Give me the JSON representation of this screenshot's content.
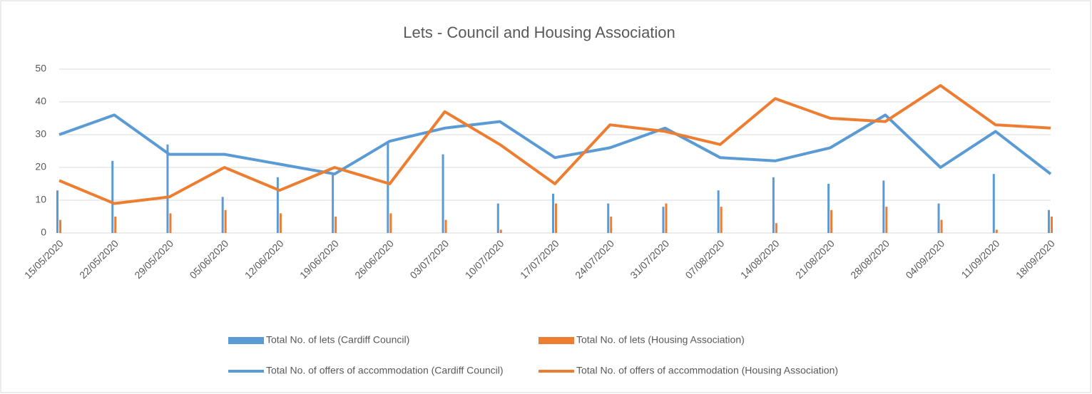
{
  "chart_data": {
    "type": "combo",
    "title": "Lets - Council and Housing Association",
    "categories": [
      "15/05/2020",
      "22/05/2020",
      "29/05/2020",
      "05/06/2020",
      "12/06/2020",
      "19/06/2020",
      "26/06/2020",
      "03/07/2020",
      "10/07/2020",
      "17/07/2020",
      "24/07/2020",
      "31/07/2020",
      "07/08/2020",
      "14/08/2020",
      "21/08/2020",
      "28/08/2020",
      "04/09/2020",
      "11/09/2020",
      "18/09/2020"
    ],
    "series": [
      {
        "name": "Total No. of lets (Cardiff Council)",
        "type": "bar",
        "color": "#5b9bd5",
        "values": [
          13,
          22,
          27,
          11,
          17,
          18,
          28,
          24,
          9,
          12,
          9,
          8,
          13,
          17,
          15,
          16,
          9,
          18,
          7
        ]
      },
      {
        "name": "Total No. of lets (Housing Association)",
        "type": "bar",
        "color": "#ed7d31",
        "values": [
          4,
          5,
          6,
          7,
          6,
          5,
          6,
          4,
          1,
          9,
          5,
          9,
          8,
          3,
          7,
          8,
          4,
          1,
          5
        ]
      },
      {
        "name": "Total No. of offers of accommodation (Cardiff Council)",
        "type": "line",
        "color": "#5b9bd5",
        "values": [
          30,
          36,
          24,
          24,
          21,
          18,
          28,
          32,
          34,
          23,
          26,
          32,
          23,
          22,
          26,
          36,
          20,
          31,
          18
        ]
      },
      {
        "name": "Total No. of offers of accommodation (Housing Association)",
        "type": "line",
        "color": "#ed7d31",
        "values": [
          16,
          9,
          11,
          20,
          13,
          20,
          15,
          37,
          27,
          15,
          33,
          31,
          27,
          41,
          35,
          34,
          45,
          33,
          32
        ]
      }
    ],
    "ylim": [
      0,
      50
    ],
    "yticks": [
      0,
      10,
      20,
      30,
      40,
      50
    ],
    "grid": true
  }
}
